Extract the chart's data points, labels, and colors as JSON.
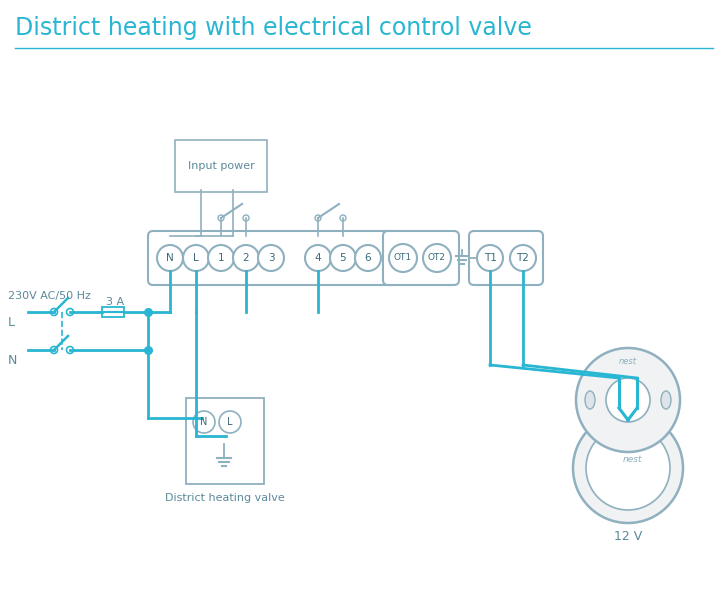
{
  "title": "District heating with electrical control valve",
  "title_color": "#29b6d2",
  "title_fontsize": 17,
  "bg_color": "#ffffff",
  "line_color": "#29b6d2",
  "outline_color": "#8fb0be",
  "text_color": "#5a8a9a",
  "dark_text": "#3a6a7a",
  "terminal_labels": [
    "N",
    "L",
    "1",
    "2",
    "3",
    "4",
    "5",
    "6"
  ],
  "ot_labels": [
    "OT1",
    "OT2"
  ],
  "t_labels": [
    "T1",
    "T2"
  ],
  "bottom_labels": [
    "District heating valve",
    "12 V"
  ],
  "input_power_label": "Input power",
  "label_230": "230V AC/50 Hz",
  "label_L": "L",
  "label_N": "N",
  "label_3A": "3 A"
}
